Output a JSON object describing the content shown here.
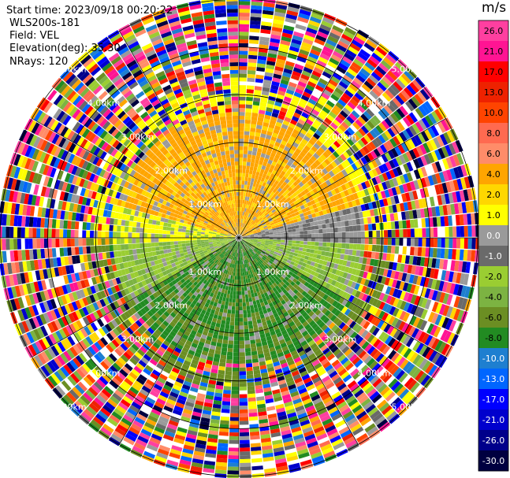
{
  "header": {
    "start_time": "Start time: 2023/09/18 00:20:22",
    "instrument": "WLS200s-181",
    "field": "Field: VEL",
    "elevation": "Elevation(deg): 35.30",
    "nrays": "NRays: 120"
  },
  "chart_data": {
    "type": "heatmap",
    "description_kind": "polar PPI wind-lidar radial velocity",
    "colorbar": {
      "unit": "m/s",
      "ticks": [
        "26.0",
        "21.0",
        "17.0",
        "13.0",
        "10.0",
        "8.0",
        "6.0",
        "4.0",
        "2.0",
        "1.0",
        "0.0",
        "-1.0",
        "-2.0",
        "-4.0",
        "-6.0",
        "-8.0",
        "-10.0",
        "-13.0",
        "-17.0",
        "-21.0",
        "-26.0",
        "-30.0"
      ],
      "colors": [
        "#ff3fa0",
        "#ff1493",
        "#ff0000",
        "#ee2200",
        "#ff4400",
        "#ff6a50",
        "#ff8c69",
        "#ffa500",
        "#ffd700",
        "#ffff00",
        "#9a9a9a",
        "#6a6a6a",
        "#9acd32",
        "#7cb342",
        "#6b8e23",
        "#228b22",
        "#1e7fd0",
        "#0066ff",
        "#0000ff",
        "#0000cd",
        "#00008b",
        "#000040"
      ]
    },
    "range_rings_km": [
      1.0,
      2.0,
      3.0,
      4.0,
      5.0
    ],
    "ring_labels": [
      "1.00km",
      "2.00km",
      "3.00km",
      "4.00km",
      "5.00km"
    ],
    "max_range_km": 5.0,
    "nrays": 120
  }
}
